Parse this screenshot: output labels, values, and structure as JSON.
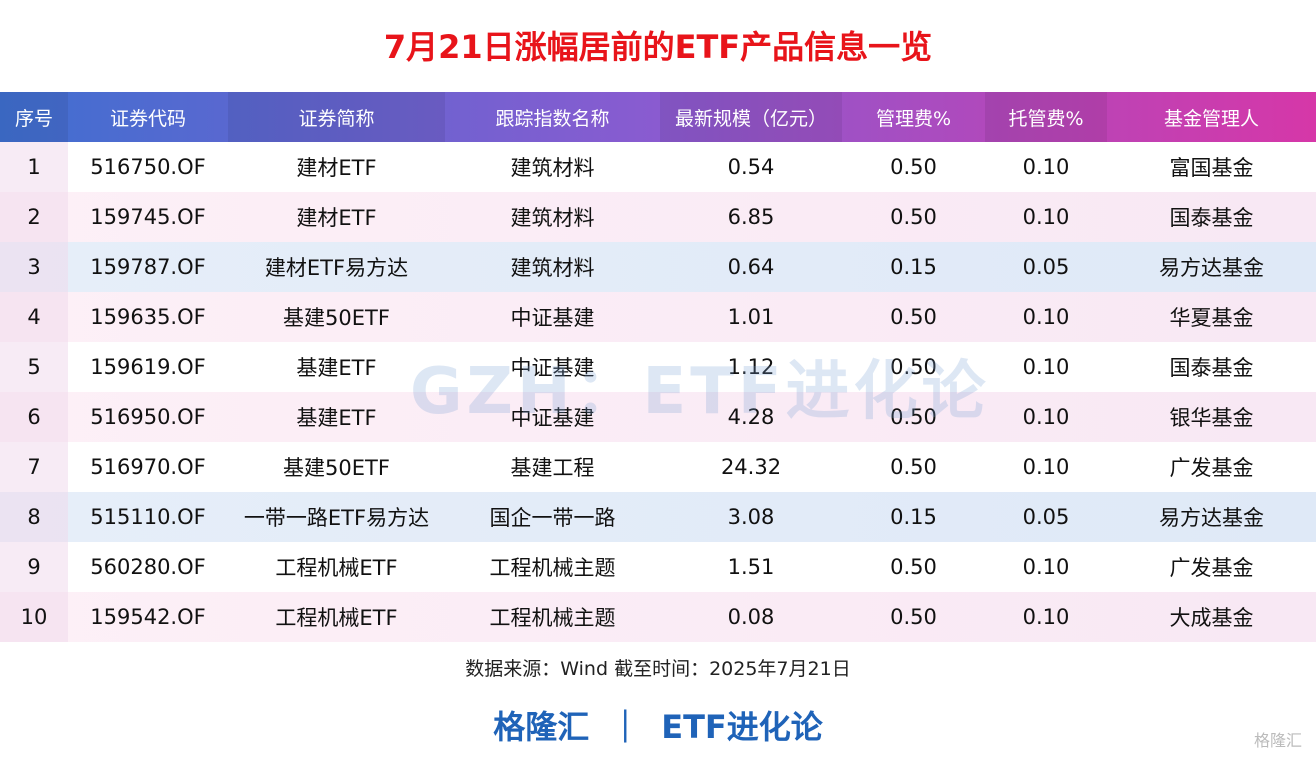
{
  "header": {
    "title": "7月21日涨幅居前的ETF产品信息一览"
  },
  "table": {
    "columns": [
      "序号",
      "证券代码",
      "证券简称",
      "跟踪指数名称",
      "最新规模（亿元）",
      "管理费%",
      "托管费%",
      "基金管理人"
    ],
    "rows": [
      [
        "1",
        "516750.OF",
        "建材ETF",
        "建筑材料",
        "0.54",
        "0.50",
        "0.10",
        "富国基金"
      ],
      [
        "2",
        "159745.OF",
        "建材ETF",
        "建筑材料",
        "6.85",
        "0.50",
        "0.10",
        "国泰基金"
      ],
      [
        "3",
        "159787.OF",
        "建材ETF易方达",
        "建筑材料",
        "0.64",
        "0.15",
        "0.05",
        "易方达基金"
      ],
      [
        "4",
        "159635.OF",
        "基建50ETF",
        "中证基建",
        "1.01",
        "0.50",
        "0.10",
        "华夏基金"
      ],
      [
        "5",
        "159619.OF",
        "基建ETF",
        "中证基建",
        "1.12",
        "0.50",
        "0.10",
        "国泰基金"
      ],
      [
        "6",
        "516950.OF",
        "基建ETF",
        "中证基建",
        "4.28",
        "0.50",
        "0.10",
        "银华基金"
      ],
      [
        "7",
        "516970.OF",
        "基建50ETF",
        "基建工程",
        "24.32",
        "0.50",
        "0.10",
        "广发基金"
      ],
      [
        "8",
        "515110.OF",
        "一带一路ETF易方达",
        "国企一带一路",
        "3.08",
        "0.15",
        "0.05",
        "易方达基金"
      ],
      [
        "9",
        "560280.OF",
        "工程机械ETF",
        "工程机械主题",
        "1.51",
        "0.50",
        "0.10",
        "广发基金"
      ],
      [
        "10",
        "159542.OF",
        "工程机械ETF",
        "工程机械主题",
        "0.08",
        "0.50",
        "0.10",
        "大成基金"
      ]
    ]
  },
  "watermark": "GZH：ETF进化论",
  "source": "数据来源：Wind 截至时间：2025年7月21日",
  "brand": {
    "left": "格隆汇",
    "separator": "｜",
    "right": "ETF进化论"
  },
  "corner_logo": "格隆汇"
}
